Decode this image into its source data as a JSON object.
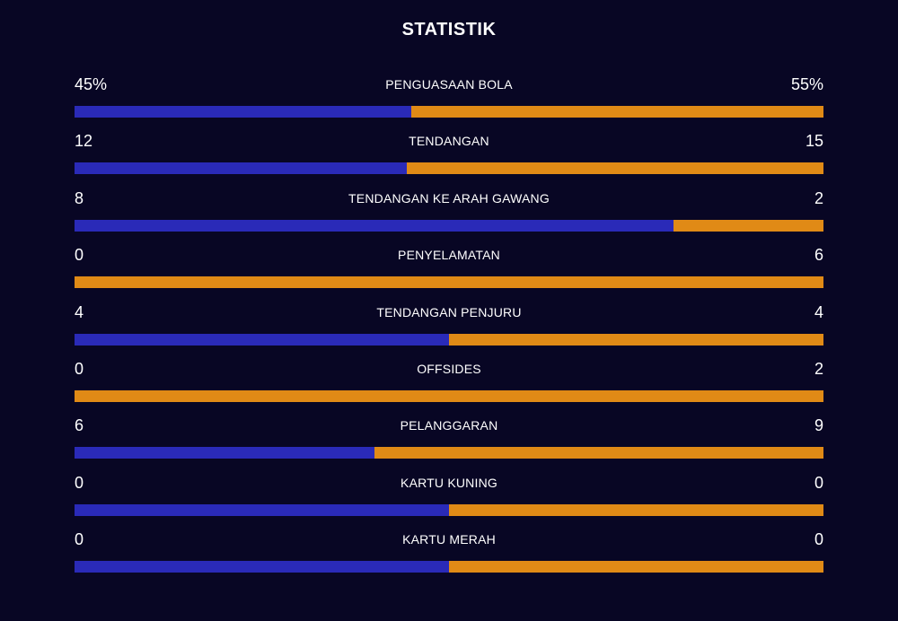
{
  "title": "STATISTIK",
  "colors": {
    "background": "#080624",
    "home": "#2a2ab8",
    "away": "#e08a16",
    "text": "#ffffff"
  },
  "stats": [
    {
      "label": "PENGUASAAN BOLA",
      "home": "45%",
      "away": "55%",
      "home_share": 0.45
    },
    {
      "label": "TENDANGAN",
      "home": "12",
      "away": "15",
      "home_share": 0.444
    },
    {
      "label": "TENDANGAN KE ARAH GAWANG",
      "home": "8",
      "away": "2",
      "home_share": 0.8
    },
    {
      "label": "PENYELAMATAN",
      "home": "0",
      "away": "6",
      "home_share": 0
    },
    {
      "label": "TENDANGAN PENJURU",
      "home": "4",
      "away": "4",
      "home_share": 0.5
    },
    {
      "label": "OFFSIDES",
      "home": "0",
      "away": "2",
      "home_share": 0
    },
    {
      "label": "PELANGGARAN",
      "home": "6",
      "away": "9",
      "home_share": 0.4
    },
    {
      "label": "KARTU KUNING",
      "home": "0",
      "away": "0",
      "home_share": 0.5
    },
    {
      "label": "KARTU MERAH",
      "home": "0",
      "away": "0",
      "home_share": 0.5
    }
  ]
}
